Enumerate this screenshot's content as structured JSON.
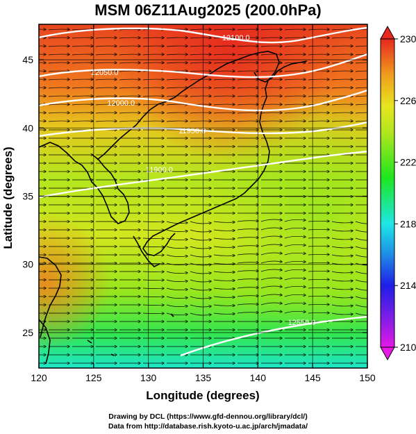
{
  "title": "MSM 06Z11Aug2025 (200.0hPa)",
  "chart_data": {
    "type": "heatmap",
    "title": "MSM 06Z11Aug2025 (200.0hPa)",
    "xlabel": "Longitude (degrees)",
    "ylabel": "Latitude  (degrees)",
    "xlim": [
      120,
      150
    ],
    "ylim": [
      22.4,
      47.6
    ],
    "x_ticks": [
      "120",
      "125",
      "130",
      "135",
      "140",
      "145",
      "150"
    ],
    "y_ticks": [
      "25",
      "30",
      "35",
      "40",
      "45"
    ],
    "colorbar": {
      "min": 210,
      "max": 230,
      "ticks": [
        "210",
        "214",
        "218",
        "222",
        "226",
        "230"
      ]
    },
    "contours": [
      {
        "label": "12100.0",
        "lon": 138.0
      },
      {
        "label": "12050.0",
        "lon": 126.0
      },
      {
        "label": "12000.0",
        "lon": 127.5
      },
      {
        "label": "11950.0",
        "lon": 134.0
      },
      {
        "label": "11900.0",
        "lon": 131.0
      },
      {
        "label": "12550.0",
        "lon": 144.0
      }
    ],
    "grid": true,
    "overlays": [
      "coastlines",
      "streamlines",
      "geopotential height contours"
    ]
  },
  "credits": {
    "line1": "Drawing by DCL (https://www.gfd-dennou.org/library/dcl/)",
    "line2": "Data from http://database.rish.kyoto-u.ac.jp/arch/jmadata/"
  }
}
